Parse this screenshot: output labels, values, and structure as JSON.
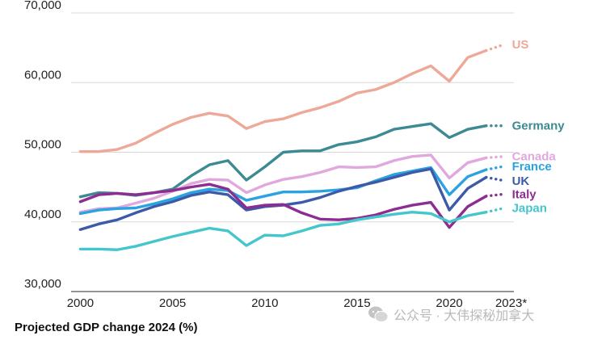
{
  "chart_data": {
    "type": "line",
    "x": [
      2000,
      2001,
      2002,
      2003,
      2004,
      2005,
      2006,
      2007,
      2008,
      2009,
      2010,
      2011,
      2012,
      2013,
      2014,
      2015,
      2016,
      2017,
      2018,
      2019,
      2020,
      2021,
      2022,
      2023
    ],
    "x_ticks": [
      2000,
      2005,
      2010,
      2015,
      2020
    ],
    "x_tick_labels": [
      "2000",
      "2005",
      "2010",
      "2015",
      "2020"
    ],
    "x_last_label": "2023*",
    "xlim": [
      1999.5,
      2023.5
    ],
    "ylim": [
      30000,
      70000
    ],
    "y_ticks": [
      30000,
      40000,
      50000,
      60000,
      70000
    ],
    "y_tick_labels": [
      "30,000",
      "40,000",
      "50,000",
      "60,000",
      "70,000"
    ],
    "grid": true,
    "projection": "final year drawn dotted",
    "series": [
      {
        "name": "US",
        "color": "#eea898",
        "values": [
          50100,
          50100,
          50400,
          51300,
          52700,
          54000,
          55000,
          55600,
          55200,
          53400,
          54400,
          54800,
          55700,
          56400,
          57300,
          58500,
          59000,
          60000,
          61300,
          62400,
          60200,
          63600,
          64600,
          65500
        ]
      },
      {
        "name": "Germany",
        "color": "#3c8a92",
        "values": [
          43600,
          44200,
          44100,
          43800,
          44200,
          44700,
          46600,
          48200,
          48800,
          46000,
          47900,
          50000,
          50200,
          50200,
          51100,
          51500,
          52200,
          53300,
          53700,
          54100,
          52100,
          53300,
          53800,
          53800
        ]
      },
      {
        "name": "Canada",
        "color": "#e0a8dc",
        "values": [
          41400,
          41900,
          42000,
          42700,
          43400,
          44400,
          45500,
          46100,
          46000,
          44200,
          45300,
          46100,
          46500,
          47100,
          47900,
          47800,
          47900,
          48800,
          49400,
          49600,
          46300,
          48500,
          49200,
          49400
        ]
      },
      {
        "name": "France",
        "color": "#2aa3e0",
        "values": [
          41200,
          41700,
          41900,
          42000,
          42600,
          43300,
          44200,
          44700,
          44500,
          43100,
          43700,
          44300,
          44300,
          44400,
          44600,
          44900,
          45900,
          46800,
          47300,
          47800,
          43900,
          46500,
          47500,
          48000
        ]
      },
      {
        "name": "UK",
        "color": "#3d5aa8",
        "values": [
          38900,
          39700,
          40300,
          41300,
          42200,
          42900,
          43800,
          44300,
          43900,
          41700,
          42200,
          42400,
          42800,
          43500,
          44400,
          45100,
          45700,
          46400,
          47100,
          47600,
          41700,
          44800,
          46400,
          45900
        ]
      },
      {
        "name": "Italy",
        "color": "#8c2d91",
        "values": [
          42900,
          43900,
          44100,
          43900,
          44200,
          44500,
          45000,
          45400,
          44700,
          42000,
          42400,
          42500,
          41300,
          40400,
          40300,
          40500,
          41000,
          41800,
          42400,
          42800,
          39200,
          42200,
          43700,
          44000
        ]
      },
      {
        "name": "Japan",
        "color": "#44c6cc",
        "values": [
          36100,
          36100,
          36000,
          36500,
          37200,
          37900,
          38500,
          39100,
          38700,
          36600,
          38100,
          38000,
          38700,
          39500,
          39700,
          40300,
          40700,
          41100,
          41400,
          41200,
          40000,
          40900,
          41400,
          42000
        ]
      }
    ]
  },
  "footer": {
    "caption": "Projected GDP change 2024 (%)"
  },
  "watermark": {
    "text": "公众号 · 大伟探秘加拿大"
  }
}
